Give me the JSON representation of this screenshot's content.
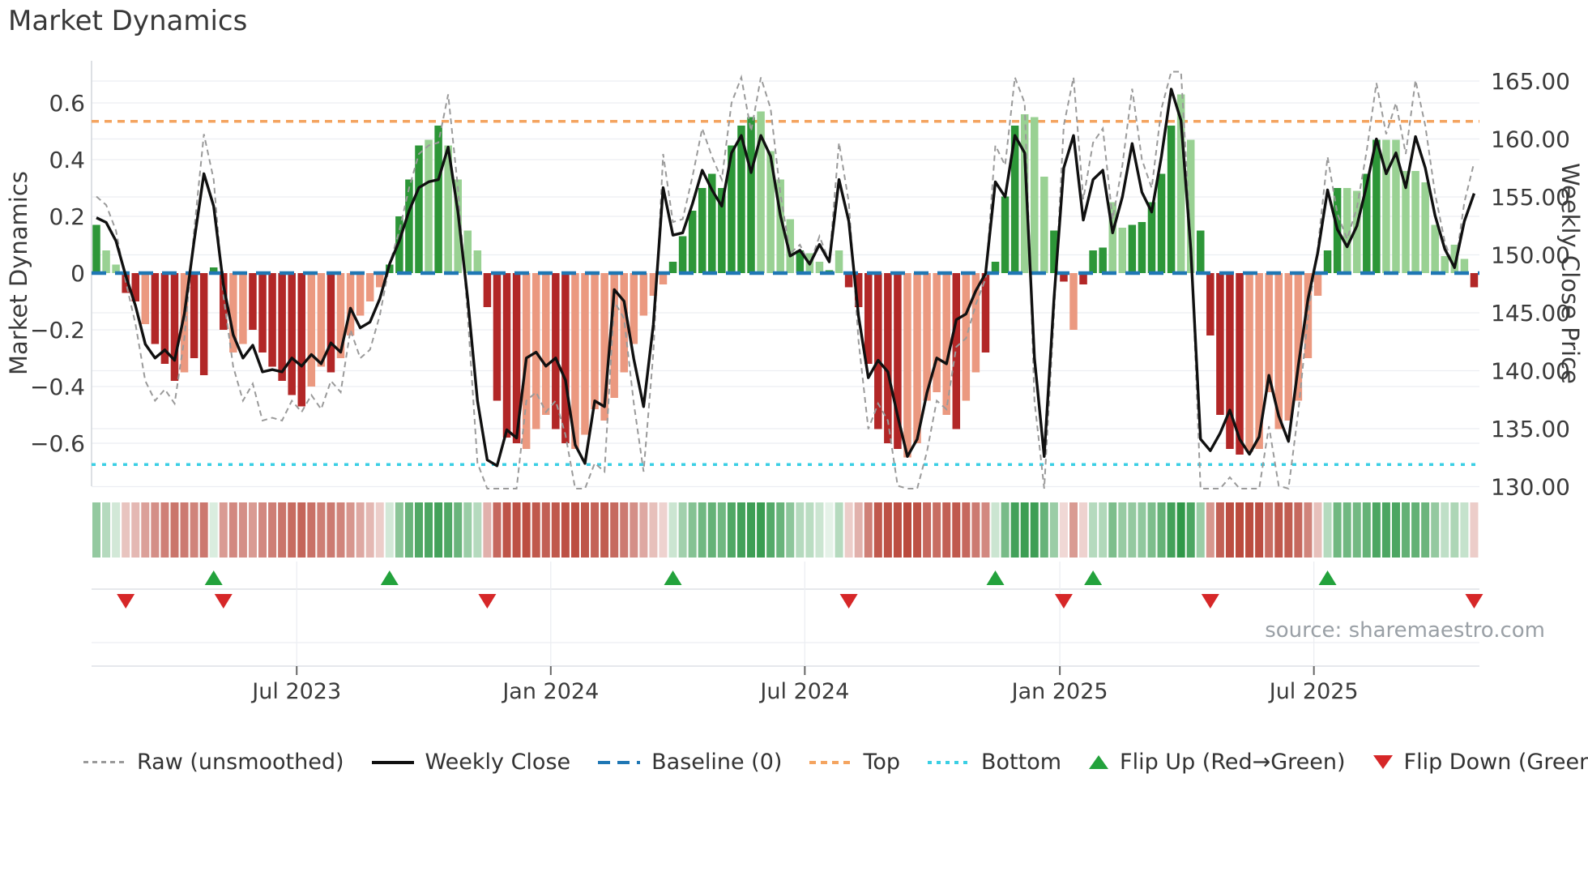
{
  "title": "Market Dynamics",
  "source": "source: sharemaestro.com",
  "left_axis": {
    "label": "Market Dynamics",
    "labels": [
      "0.6",
      "0.4",
      "0.2",
      "0",
      "−0.2",
      "−0.4",
      "−0.6"
    ],
    "values": [
      0.6,
      0.4,
      0.2,
      0,
      -0.2,
      -0.4,
      -0.6
    ]
  },
  "right_axis": {
    "label": "Weekly Close Price",
    "labels": [
      "165.00",
      "160.00",
      "155.00",
      "150.00",
      "145.00",
      "140.00",
      "135.00",
      "130.00"
    ],
    "values": [
      165,
      160,
      155,
      150,
      145,
      140,
      135,
      130
    ]
  },
  "x_axis": {
    "labels": [
      "Jul 2023",
      "Jan 2024",
      "Jul 2024",
      "Jan 2025",
      "Jul 2025"
    ],
    "tick_weeks": [
      20.5,
      46.5,
      72.5,
      98.6,
      124.6
    ]
  },
  "legend": {
    "items": [
      {
        "kind": "raw",
        "label": "Raw (unsmoothed)"
      },
      {
        "kind": "close",
        "label": "Weekly Close"
      },
      {
        "kind": "baseline",
        "label": "Baseline (0)"
      },
      {
        "kind": "top",
        "label": "Top"
      },
      {
        "kind": "bottom",
        "label": "Bottom"
      },
      {
        "kind": "flip_up",
        "label": "Flip Up (Red→Green)"
      },
      {
        "kind": "flip_down",
        "label": "Flip Down (Green→Red)"
      }
    ]
  },
  "colors": {
    "bar_green_dark": "#2d9638",
    "bar_green_light": "#99d193",
    "bar_red_dark": "#b22727",
    "bar_red_light": "#eb9980",
    "line_close": "#101010",
    "line_raw": "#9a9a9a",
    "baseline": "#1f77b4",
    "top_line": "#f4a460",
    "bottom_line": "#3bcfe4",
    "flip_up": "#23a23c",
    "flip_down": "#d62728",
    "grid": "#eceef2",
    "spine": "#d2d6db",
    "text": "#3b3b3b",
    "muted": "#9aa0a6",
    "heat_green": "#2d9646",
    "heat_red": "#ba4a3d"
  },
  "chart_data": {
    "type": "bar+line",
    "x_unit": "week",
    "num_weeks": 142,
    "left_ylim": [
      -0.75,
      0.75
    ],
    "right_ylim": [
      130.0,
      166.75
    ],
    "baseline": 0,
    "top": 0.535,
    "bottom": -0.675,
    "grid": true,
    "oscillator": {
      "name": "Market Dynamics oscillator",
      "values": [
        0.17,
        0.08,
        0.03,
        -0.07,
        -0.1,
        -0.18,
        -0.25,
        -0.32,
        -0.38,
        -0.35,
        -0.3,
        -0.36,
        0.02,
        -0.2,
        -0.28,
        -0.25,
        -0.2,
        -0.28,
        -0.33,
        -0.38,
        -0.43,
        -0.47,
        -0.4,
        -0.33,
        -0.35,
        -0.3,
        -0.22,
        -0.15,
        -0.1,
        -0.05,
        0.03,
        0.2,
        0.33,
        0.45,
        0.47,
        0.52,
        0.45,
        0.33,
        0.15,
        0.08,
        -0.12,
        -0.45,
        -0.58,
        -0.6,
        -0.62,
        -0.55,
        -0.5,
        -0.55,
        -0.6,
        -0.62,
        -0.57,
        -0.48,
        -0.52,
        -0.44,
        -0.35,
        -0.25,
        -0.15,
        -0.08,
        -0.04,
        0.04,
        0.13,
        0.22,
        0.3,
        0.35,
        0.3,
        0.45,
        0.52,
        0.55,
        0.57,
        0.43,
        0.33,
        0.19,
        0.08,
        0.07,
        0.04,
        0.01,
        0.08,
        -0.05,
        -0.12,
        -0.32,
        -0.55,
        -0.6,
        -0.62,
        -0.65,
        -0.6,
        -0.45,
        -0.42,
        -0.5,
        -0.55,
        -0.45,
        -0.35,
        -0.28,
        0.04,
        0.27,
        0.52,
        0.56,
        0.55,
        0.34,
        0.15,
        -0.03,
        -0.2,
        -0.04,
        0.08,
        0.09,
        0.25,
        0.16,
        0.17,
        0.18,
        0.25,
        0.35,
        0.52,
        0.63,
        0.47,
        0.15,
        -0.22,
        -0.5,
        -0.62,
        -0.64,
        -0.63,
        -0.62,
        -0.42,
        -0.55,
        -0.52,
        -0.45,
        -0.3,
        -0.08,
        0.08,
        0.3,
        0.3,
        0.29,
        0.35,
        0.47,
        0.47,
        0.47,
        0.36,
        0.36,
        0.32,
        0.17,
        0.06,
        0.1,
        0.05,
        -0.05
      ],
      "shades": "dllddldddlddddllddddddlldllllldddd ldllllddddlllddlllllllllldddddddddlllldlldlddddddllllldllddddllldDldddllddddd lldddddlllllllldd llddllllllllld"
    },
    "weekly_close": {
      "name": "Weekly Close",
      "values": [
        153.2,
        152.8,
        151.2,
        148.2,
        145.6,
        142.3,
        141.1,
        141.8,
        140.9,
        144.9,
        151.2,
        157.0,
        154.2,
        147.4,
        143.1,
        141.1,
        142.2,
        139.9,
        140.1,
        139.9,
        141.1,
        140.4,
        141.4,
        140.6,
        142.4,
        141.6,
        145.4,
        143.7,
        144.2,
        146.2,
        149.2,
        151.2,
        153.8,
        155.8,
        156.3,
        156.5,
        159.3,
        153.7,
        146.2,
        137.4,
        132.3,
        131.8,
        134.9,
        134.2,
        141.1,
        141.6,
        140.4,
        141.1,
        139.2,
        133.6,
        132.0,
        137.4,
        136.9,
        147.0,
        146.0,
        141.0,
        136.9,
        144.0,
        155.8,
        151.7,
        151.9,
        154.4,
        157.3,
        155.6,
        154.2,
        158.8,
        160.3,
        157.1,
        160.3,
        158.5,
        153.4,
        149.9,
        150.4,
        149.2,
        150.9,
        149.4,
        156.5,
        152.9,
        144.7,
        139.4,
        140.9,
        139.9,
        136.1,
        132.6,
        134.1,
        138.1,
        141.1,
        140.6,
        144.4,
        144.9,
        146.9,
        148.4,
        156.3,
        155.0,
        160.3,
        158.8,
        141.1,
        132.6,
        146.2,
        157.5,
        160.3,
        153.0,
        156.5,
        157.3,
        151.9,
        155.0,
        159.6,
        155.4,
        153.7,
        158.5,
        164.3,
        161.6,
        150.5,
        134.1,
        133.1,
        134.6,
        136.6,
        134.1,
        132.8,
        134.3,
        139.6,
        136.1,
        133.9,
        140.4,
        146.2,
        150.2,
        155.6,
        152.2,
        150.7,
        152.5,
        156.0,
        160.0,
        157.0,
        158.8,
        155.8,
        160.2,
        157.5,
        153.4,
        150.5,
        148.9,
        152.9,
        155.3
      ]
    },
    "raw": {
      "name": "Raw (unsmoothed)",
      "values": [
        0.27,
        0.24,
        0.15,
        -0.03,
        -0.18,
        -0.38,
        -0.45,
        -0.41,
        -0.46,
        -0.23,
        0.15,
        0.49,
        0.33,
        -0.08,
        -0.33,
        -0.45,
        -0.39,
        -0.52,
        -0.51,
        -0.52,
        -0.45,
        -0.49,
        -0.43,
        -0.48,
        -0.38,
        -0.42,
        -0.2,
        -0.3,
        -0.27,
        -0.15,
        0.03,
        0.15,
        0.3,
        0.42,
        0.45,
        0.46,
        0.63,
        0.3,
        -0.15,
        -0.67,
        -0.76,
        -0.76,
        -0.76,
        -0.76,
        -0.45,
        -0.42,
        -0.49,
        -0.45,
        -0.57,
        -0.76,
        -0.76,
        -0.67,
        -0.7,
        -0.1,
        -0.16,
        -0.46,
        -0.7,
        -0.28,
        0.42,
        0.18,
        0.19,
        0.34,
        0.51,
        0.41,
        0.33,
        0.6,
        0.69,
        0.5,
        0.69,
        0.58,
        0.28,
        0.07,
        0.1,
        0.03,
        0.13,
        0.04,
        0.46,
        0.25,
        -0.24,
        -0.55,
        -0.46,
        -0.52,
        -0.75,
        -0.76,
        -0.76,
        -0.63,
        -0.45,
        -0.48,
        -0.26,
        -0.23,
        -0.11,
        -0.02,
        0.45,
        0.38,
        0.69,
        0.6,
        -0.45,
        -0.76,
        -0.15,
        0.52,
        0.69,
        0.26,
        0.46,
        0.51,
        0.19,
        0.38,
        0.65,
        0.4,
        0.3,
        0.58,
        0.71,
        0.71,
        0.11,
        -0.76,
        -0.76,
        -0.76,
        -0.72,
        -0.76,
        -0.76,
        -0.76,
        -0.54,
        -0.75,
        -0.76,
        -0.49,
        -0.15,
        0.09,
        0.41,
        0.21,
        0.12,
        0.23,
        0.43,
        0.67,
        0.49,
        0.6,
        0.42,
        0.68,
        0.52,
        0.28,
        0.11,
        0.01,
        0.25,
        0.39
      ]
    },
    "flip_up_weeks": [
      12,
      30,
      59,
      92,
      102,
      126
    ],
    "flip_down_weeks": [
      3,
      13,
      40,
      77,
      99,
      114,
      141
    ]
  }
}
